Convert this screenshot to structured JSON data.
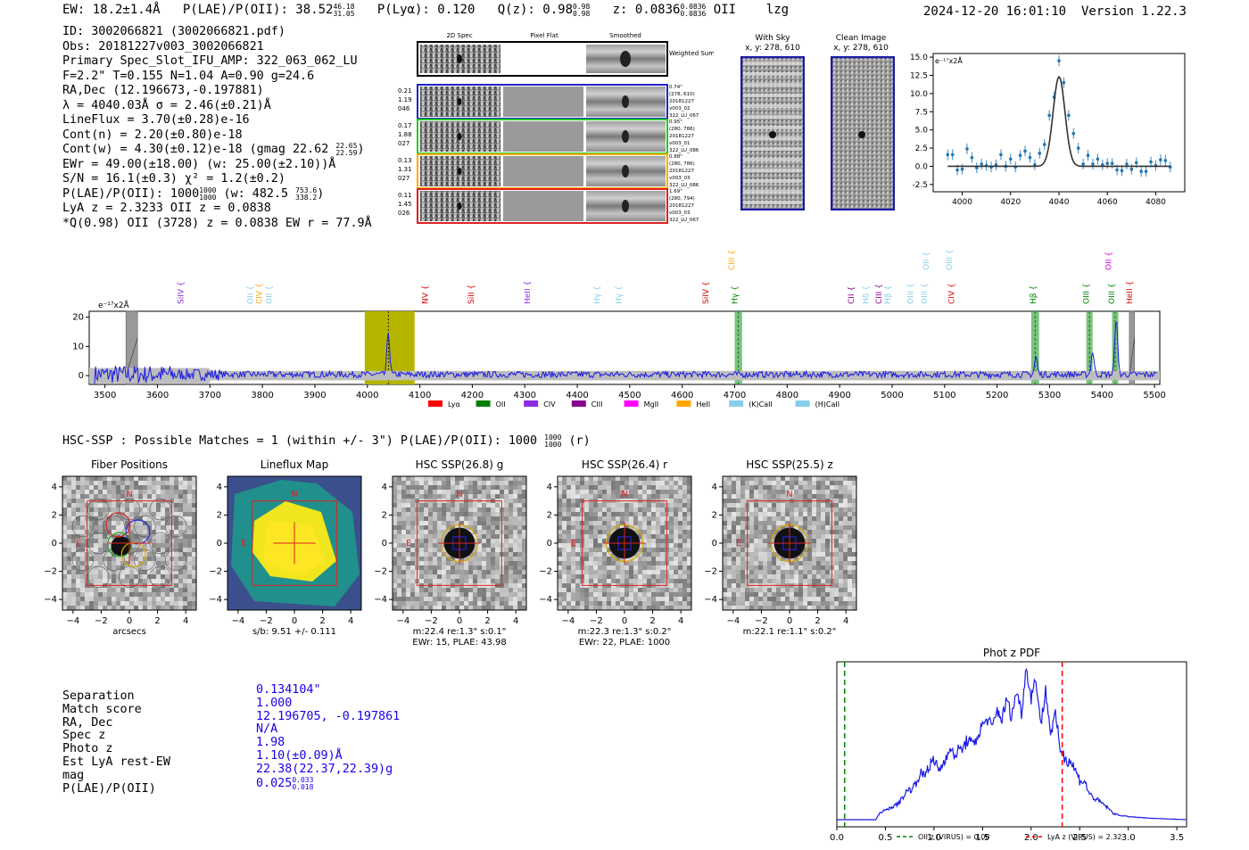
{
  "header": {
    "ew": "EW: 18.2±1.4Å",
    "plae_label": "P(LAE)/P(OII): 38.52",
    "plae_hi": "46.18",
    "plae_lo": "31.05",
    "plya": "P(Lyα): 0.120",
    "qz_label": "Q(z): 0.98",
    "qz_hi": "0.98",
    "qz_lo": "0.98",
    "z_label": "z: 0.0836",
    "z_hi": "0.0836",
    "z_lo": "0.0836",
    "z_line": "OII",
    "tag": "lzg",
    "timestamp": "2024-12-20 16:01:10",
    "version": "Version 1.22.3"
  },
  "info": {
    "id": "ID: 3002066821 (3002066821.pdf)",
    "obs": "Obs: 20181227v003_3002066821",
    "primary": "Primary Spec_Slot_IFU_AMP: 322_063_062_LU",
    "fstats": "F=2.2\"  T=0.155  N=1.04  A=0.90  g=24.6",
    "radec": "RA,Dec (12.196673,-0.197881)",
    "lambda": "λ = 4040.03Å  σ = 2.46(±0.21)Å",
    "lineflux": "LineFlux = 3.70(±0.28)e-16",
    "contn": "Cont(n) = 2.20(±0.80)e-18",
    "contw": "Cont(w) = 4.30(±0.12)e-18 (gmag 22.62",
    "contw_hi": "22.65",
    "contw_lo": "22.59",
    "ewr": "EWr = 49.00(±18.00) (w: 25.00(±2.10))Å",
    "sn": "S/N = 16.1(±0.3)  χ² = 1.2(±0.2)",
    "plae": "P(LAE)/P(OII): 1000",
    "plae_hi": "1000",
    "plae_lo": "1000",
    "plae_w": "(w: 482.5",
    "plae_w_hi": "753.6",
    "plae_w_lo": "338.2",
    "lya": "LyA z = 2.3233  OII z = 0.0838",
    "q": "*Q(0.98) OII (3728) z = 0.0838  EW r = 77.9Å"
  },
  "cutouts": {
    "col_2d": "2D Spec",
    "col_flat": "Pixel Flat",
    "col_smooth": "Smoothed",
    "weighted": "Weighted Sum",
    "rows": [
      {
        "left": [
          "0.21",
          "1.19",
          "046"
        ],
        "right": [
          "0.74\"",
          "(278, 610)",
          "20181227",
          "v003_02",
          "322_LU_067"
        ]
      },
      {
        "left": [
          "0.17",
          "1.88",
          "027"
        ],
        "right": [
          "0.95\"",
          "(280, 786)",
          "20181227",
          "v003_01",
          "322_LU_086"
        ]
      },
      {
        "left": [
          "0.13",
          "1.31",
          "027"
        ],
        "right": [
          "0.88\"",
          "(280, 786)",
          "20181227",
          "v003_03",
          "322_LU_086"
        ]
      },
      {
        "left": [
          "0.11",
          "1.45",
          "026"
        ],
        "right": [
          "1.69\"",
          "(280, 794)",
          "20181227",
          "v003_03",
          "322_LU_067"
        ]
      }
    ]
  },
  "sky": {
    "with_sky": "With Sky",
    "with_sky_xy": "x, y: 278, 610",
    "clean": "Clean Image",
    "clean_xy": "x, y: 278, 610"
  },
  "line_fit": {
    "scale_label": "e⁻¹⁷x2Å",
    "chart_data": {
      "type": "scatter",
      "title": "",
      "xlabel": "",
      "ylabel": "e-17 x2Å",
      "xlim": [
        3988,
        4092
      ],
      "ylim": [
        -3.5,
        15.5
      ],
      "xticks": [
        4000,
        4020,
        4040,
        4060,
        4080
      ],
      "yticks": [
        -2.5,
        0.0,
        2.5,
        5.0,
        7.5,
        10.0,
        12.5,
        15.0
      ],
      "x": [
        3994,
        3996,
        3998,
        4000,
        4002,
        4004,
        4006,
        4008,
        4010,
        4012,
        4014,
        4016,
        4018,
        4020,
        4022,
        4024,
        4026,
        4028,
        4030,
        4032,
        4034,
        4036,
        4038,
        4040,
        4042,
        4044,
        4046,
        4048,
        4050,
        4052,
        4054,
        4056,
        4058,
        4060,
        4062,
        4064,
        4066,
        4068,
        4070,
        4072,
        4074,
        4076,
        4078,
        4080,
        4082,
        4084,
        4086
      ],
      "y": [
        1.6,
        1.6,
        -0.5,
        -0.4,
        2.4,
        1.2,
        -0.2,
        0.3,
        0.1,
        -0.1,
        0.2,
        1.6,
        0.0,
        1.0,
        -0.1,
        1.5,
        2.1,
        1.2,
        0.2,
        1.8,
        3.0,
        7.0,
        9.5,
        14.5,
        11.5,
        7.0,
        4.5,
        2.5,
        0.3,
        1.5,
        0.3,
        1.0,
        0.2,
        0.4,
        0.4,
        -0.5,
        -0.6,
        0.3,
        -0.4,
        0.5,
        -0.7,
        -0.7,
        0.6,
        0.1,
        0.9,
        0.8,
        -0.1
      ],
      "fit": {
        "amplitude": 12.3,
        "center": 4040.03,
        "sigma": 2.46,
        "baseline": 0.0
      }
    }
  },
  "spectrum": {
    "scale_label": "e⁻¹⁷x2Å",
    "chart_data": {
      "type": "line",
      "xlim": [
        3470,
        5510
      ],
      "ylim": [
        -3,
        22
      ],
      "xticks": [
        3500,
        3600,
        3700,
        3800,
        3900,
        4000,
        4100,
        4200,
        4300,
        4400,
        4500,
        4600,
        4700,
        4800,
        4900,
        5000,
        5100,
        5200,
        5300,
        5400,
        5500
      ],
      "yticks": [
        0,
        10,
        20
      ],
      "highlight_band": [
        3995,
        4090
      ],
      "detected_line": 4040,
      "masked_bands": [
        [
          3540,
          3562
        ],
        [
          5452,
          5462
        ]
      ],
      "emission_peaks": [
        {
          "x": 4040,
          "y": 14.5
        },
        {
          "x": 5274,
          "y": 6.0
        },
        {
          "x": 5382,
          "y": 8.0
        },
        {
          "x": 5427,
          "y": 20.0
        }
      ]
    },
    "line_markers": [
      {
        "label": "SiIV",
        "x": 3649,
        "color": "#8a2be2",
        "tier": 1
      },
      {
        "label": "OII",
        "x": 3782,
        "color": "#87ceeb",
        "tier": 1
      },
      {
        "label": "CIV",
        "x": 3799,
        "color": "#ffa500",
        "tier": 1
      },
      {
        "label": "OII",
        "x": 3818,
        "color": "#87ceeb",
        "tier": 1
      },
      {
        "label": "NV",
        "x": 4115,
        "color": "#dd0000",
        "tier": 1
      },
      {
        "label": "SiII",
        "x": 4203,
        "color": "#dd0000",
        "tier": 1
      },
      {
        "label": "HeII",
        "x": 4310,
        "color": "#8a2be2",
        "tier": 1
      },
      {
        "label": "Hγ",
        "x": 4442,
        "color": "#87ceeb",
        "tier": 1
      },
      {
        "label": "Hγ",
        "x": 4484,
        "color": "#87ceeb",
        "tier": 1
      },
      {
        "label": "SiIV",
        "x": 4650,
        "color": "#dd0000",
        "tier": 1
      },
      {
        "label": "CIII",
        "x": 4699,
        "color": "#ffa500",
        "tier": 0
      },
      {
        "label": "Hγ",
        "x": 4705,
        "color": "#008000",
        "tier": 1
      },
      {
        "label": "CII",
        "x": 4927,
        "color": "#8b008b",
        "tier": 1
      },
      {
        "label": "Hδ",
        "x": 4955,
        "color": "#87ceeb",
        "tier": 1
      },
      {
        "label": "CIII",
        "x": 4980,
        "color": "#8b008b",
        "tier": 1
      },
      {
        "label": "Hβ",
        "x": 4997,
        "color": "#87ceeb",
        "tier": 1
      },
      {
        "label": "OIII",
        "x": 5040,
        "color": "#87ceeb",
        "tier": 1
      },
      {
        "label": "OIII",
        "x": 5066,
        "color": "#87ceeb",
        "tier": 1
      },
      {
        "label": "OII",
        "x": 5070,
        "color": "#87ceeb",
        "tier": 0
      },
      {
        "label": "OIII",
        "x": 5114,
        "color": "#87ceeb",
        "tier": 0
      },
      {
        "label": "CIV",
        "x": 5118,
        "color": "#dd0000",
        "tier": 1
      },
      {
        "label": "Hβ",
        "x": 5274,
        "color": "#008000",
        "tier": 1
      },
      {
        "label": "OIII",
        "x": 5375,
        "color": "#008000",
        "tier": 1
      },
      {
        "label": "OII",
        "x": 5417,
        "color": "#dd00dd",
        "tier": 0
      },
      {
        "label": "OIII",
        "x": 5423,
        "color": "#008000",
        "tier": 1
      },
      {
        "label": "HeII",
        "x": 5457,
        "color": "#dd0000",
        "tier": 1
      }
    ],
    "legend": [
      {
        "label": "Lyα",
        "color": "#ff0000"
      },
      {
        "label": "OII",
        "color": "#008000"
      },
      {
        "label": "CIV",
        "color": "#8a2be2"
      },
      {
        "label": "CIII",
        "color": "#8b008b"
      },
      {
        "label": "MgII",
        "color": "#ff00ff"
      },
      {
        "label": "HeII",
        "color": "#ffa500"
      },
      {
        "label": "(K)CaII",
        "color": "#87ceeb"
      },
      {
        "label": "(H)CaII",
        "color": "#87ceeb"
      }
    ]
  },
  "hsc": {
    "summary": "HSC-SSP : Possible Matches = 1 (within +/- 3\")  P(LAE)/P(OII): 1000",
    "summary_hi": "1000",
    "summary_lo": "1000",
    "summary_suffix": "(r)",
    "panels": [
      {
        "title": "Fiber Positions",
        "caption1": "arcsecs",
        "caption2": "",
        "kind": "fiber"
      },
      {
        "title": "Lineflux Map",
        "caption1": "s/b: 9.51 +/- 0.111",
        "caption2": "",
        "kind": "flux"
      },
      {
        "title": "HSC SSP(26.8) g",
        "caption1": "m:22.4  re:1.3\"  s:0.1\"",
        "caption2": "EWr: 15, PLAE: 43.98",
        "kind": "hsc"
      },
      {
        "title": "HSC SSP(26.4) r",
        "caption1": "m:22.3  re:1.3\"  s:0.2\"",
        "caption2": "EWr: 22, PLAE: 1000",
        "kind": "hsc"
      },
      {
        "title": "HSC SSP(25.5) z",
        "caption1": "m:22.1  re:1.1\"  s:0.2\"",
        "caption2": "",
        "kind": "hsc"
      }
    ],
    "ticks": [
      -4,
      -2,
      0,
      2,
      4
    ],
    "compass_n": "N",
    "compass_e": "E"
  },
  "match": {
    "labels": [
      "Separation",
      "Match score",
      "RA, Dec",
      "Spec z",
      "Photo z",
      "Est LyA rest-EW",
      "mag",
      "P(LAE)/P(OII)"
    ],
    "values": [
      "0.134104\"",
      "1.000",
      "12.196705, -0.197861",
      "N/A",
      "1.98",
      "1.10(±0.09)Å",
      "22.38(22.37,22.39)g",
      "0.025"
    ],
    "plae_hi": "0.033",
    "plae_lo": "0.018"
  },
  "photz": {
    "chart_data": {
      "type": "line",
      "title": "Phot z PDF",
      "xlim": [
        0,
        3.6
      ],
      "xticks": [
        0.0,
        0.5,
        1.0,
        1.5,
        2.0,
        2.5,
        3.0,
        3.5
      ],
      "ylim": [
        0,
        1
      ],
      "x": [
        0.0,
        0.4,
        0.45,
        0.5,
        0.55,
        0.6,
        0.65,
        0.7,
        0.75,
        0.8,
        0.85,
        0.9,
        0.95,
        1.0,
        1.05,
        1.1,
        1.15,
        1.2,
        1.25,
        1.3,
        1.35,
        1.4,
        1.45,
        1.5,
        1.55,
        1.6,
        1.65,
        1.7,
        1.75,
        1.8,
        1.85,
        1.9,
        1.95,
        2.0,
        2.05,
        2.1,
        2.15,
        2.2,
        2.25,
        2.3,
        2.35,
        2.4,
        2.45,
        2.5,
        2.55,
        2.6,
        2.65,
        2.7,
        2.75,
        2.8,
        2.85,
        2.9,
        3.0,
        3.2,
        3.4,
        3.6
      ],
      "y": [
        0.0,
        0.0,
        0.05,
        0.06,
        0.08,
        0.09,
        0.12,
        0.17,
        0.2,
        0.22,
        0.3,
        0.29,
        0.36,
        0.38,
        0.33,
        0.37,
        0.47,
        0.42,
        0.45,
        0.47,
        0.53,
        0.48,
        0.55,
        0.62,
        0.66,
        0.6,
        0.72,
        0.66,
        0.79,
        0.67,
        0.85,
        0.7,
        1.0,
        0.8,
        0.93,
        0.62,
        0.85,
        0.57,
        0.68,
        0.47,
        0.4,
        0.39,
        0.33,
        0.26,
        0.25,
        0.17,
        0.14,
        0.12,
        0.1,
        0.07,
        0.04,
        0.03,
        0.02,
        0.01,
        0.005,
        0.0
      ],
      "vlines": [
        {
          "x": 0.08,
          "color": "#008000",
          "label": "OII z (VIRUS) = 0.08"
        },
        {
          "x": 2.32,
          "color": "#ff0000",
          "label": "LyA z (VIRUS) = 2.32"
        }
      ]
    }
  }
}
